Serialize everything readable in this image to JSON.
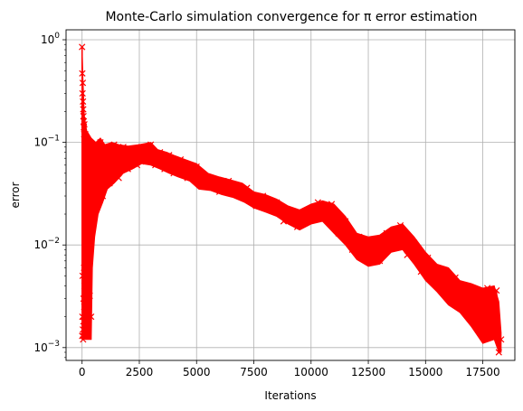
{
  "chart_data": {
    "type": "line",
    "title": "Monte-Carlo simulation convergence for π error estimation",
    "xlabel": "Iterations",
    "ylabel": "error",
    "xlim": [
      -700,
      18900
    ],
    "ylim": [
      0.00075,
      1.25
    ],
    "yscale": "log",
    "grid": true,
    "marker": "x",
    "series": [
      {
        "color": "#ff0000",
        "points": [
          [
            0,
            0.85
          ],
          [
            5,
            0.0013
          ],
          [
            10,
            0.47
          ],
          [
            15,
            0.002
          ],
          [
            20,
            0.3
          ],
          [
            25,
            0.005
          ],
          [
            30,
            0.38
          ],
          [
            35,
            0.0015
          ],
          [
            40,
            0.25
          ],
          [
            45,
            0.0012
          ],
          [
            50,
            0.21
          ],
          [
            55,
            0.0018
          ],
          [
            60,
            0.18
          ],
          [
            65,
            0.003
          ],
          [
            70,
            0.16
          ],
          [
            75,
            0.0013
          ],
          [
            80,
            0.14
          ],
          [
            85,
            0.006
          ],
          [
            90,
            0.12
          ],
          [
            95,
            0.0025
          ],
          [
            100,
            0.15
          ],
          [
            105,
            0.004
          ],
          [
            110,
            0.11
          ],
          [
            115,
            0.002
          ],
          [
            120,
            0.1
          ],
          [
            130,
            0.008
          ],
          [
            140,
            0.12
          ],
          [
            150,
            0.006
          ],
          [
            160,
            0.09
          ],
          [
            170,
            0.0045
          ],
          [
            180,
            0.11
          ],
          [
            190,
            0.01
          ],
          [
            200,
            0.08
          ],
          [
            215,
            0.003
          ],
          [
            230,
            0.09
          ],
          [
            245,
            0.012
          ],
          [
            260,
            0.075
          ],
          [
            275,
            0.0045
          ],
          [
            290,
            0.07
          ],
          [
            305,
            0.015
          ],
          [
            320,
            0.08
          ],
          [
            335,
            0.0032
          ],
          [
            350,
            0.065
          ],
          [
            365,
            0.02
          ],
          [
            380,
            0.07
          ],
          [
            395,
            0.002
          ],
          [
            420,
            0.06
          ],
          [
            450,
            0.02
          ],
          [
            500,
            0.08
          ],
          [
            550,
            0.03
          ],
          [
            600,
            0.09
          ],
          [
            700,
            0.025
          ],
          [
            800,
            0.1
          ],
          [
            900,
            0.03
          ],
          [
            1000,
            0.085
          ],
          [
            1200,
            0.04
          ],
          [
            1400,
            0.095
          ],
          [
            1600,
            0.045
          ],
          [
            1800,
            0.09
          ],
          [
            2000,
            0.055
          ],
          [
            2200,
            0.085
          ],
          [
            2400,
            0.06
          ],
          [
            2600,
            0.09
          ],
          [
            2800,
            0.065
          ],
          [
            3000,
            0.095
          ],
          [
            3200,
            0.06
          ],
          [
            3400,
            0.08
          ],
          [
            3600,
            0.055
          ],
          [
            3800,
            0.075
          ],
          [
            4000,
            0.05
          ],
          [
            4300,
            0.068
          ],
          [
            4600,
            0.045
          ],
          [
            5000,
            0.058
          ],
          [
            5300,
            0.038
          ],
          [
            5600,
            0.045
          ],
          [
            6000,
            0.033
          ],
          [
            6400,
            0.042
          ],
          [
            6800,
            0.031
          ],
          [
            7200,
            0.036
          ],
          [
            7600,
            0.024
          ],
          [
            7900,
            0.03
          ],
          [
            8200,
            0.022
          ],
          [
            8500,
            0.026
          ],
          [
            8800,
            0.017
          ],
          [
            9100,
            0.021
          ],
          [
            9400,
            0.015
          ],
          [
            9700,
            0.02
          ],
          [
            10000,
            0.018
          ],
          [
            10300,
            0.026
          ],
          [
            10600,
            0.019
          ],
          [
            10900,
            0.025
          ],
          [
            11200,
            0.013
          ],
          [
            11500,
            0.017
          ],
          [
            11800,
            0.009
          ],
          [
            12100,
            0.012
          ],
          [
            12400,
            0.008
          ],
          [
            12700,
            0.0105
          ],
          [
            13000,
            0.007
          ],
          [
            13300,
            0.013
          ],
          [
            13600,
            0.011
          ],
          [
            13900,
            0.0155
          ],
          [
            14200,
            0.008
          ],
          [
            14500,
            0.0105
          ],
          [
            14800,
            0.0055
          ],
          [
            15100,
            0.0075
          ],
          [
            15400,
            0.0042
          ],
          [
            15700,
            0.0058
          ],
          [
            16000,
            0.0035
          ],
          [
            16300,
            0.0048
          ],
          [
            16600,
            0.0026
          ],
          [
            16900,
            0.0036
          ],
          [
            17100,
            0.0018
          ],
          [
            17300,
            0.0032
          ],
          [
            17500,
            0.0014
          ],
          [
            17700,
            0.0038
          ],
          [
            17900,
            0.0016
          ],
          [
            18100,
            0.0036
          ],
          [
            18200,
            0.0009
          ],
          [
            18300,
            0.0012
          ]
        ],
        "upper": [
          [
            0,
            0.85
          ],
          [
            40,
            0.4
          ],
          [
            100,
            0.18
          ],
          [
            200,
            0.13
          ],
          [
            400,
            0.11
          ],
          [
            600,
            0.1
          ],
          [
            800,
            0.11
          ],
          [
            1000,
            0.095
          ],
          [
            1300,
            0.1
          ],
          [
            1600,
            0.095
          ],
          [
            2000,
            0.092
          ],
          [
            2500,
            0.095
          ],
          [
            3000,
            0.1
          ],
          [
            3300,
            0.085
          ],
          [
            3700,
            0.08
          ],
          [
            4000,
            0.075
          ],
          [
            4500,
            0.068
          ],
          [
            5000,
            0.062
          ],
          [
            5500,
            0.05
          ],
          [
            6000,
            0.046
          ],
          [
            6500,
            0.043
          ],
          [
            7000,
            0.04
          ],
          [
            7500,
            0.033
          ],
          [
            8000,
            0.031
          ],
          [
            8500,
            0.028
          ],
          [
            9000,
            0.024
          ],
          [
            9500,
            0.022
          ],
          [
            10000,
            0.025
          ],
          [
            10500,
            0.027
          ],
          [
            11000,
            0.025
          ],
          [
            11500,
            0.019
          ],
          [
            12000,
            0.013
          ],
          [
            12500,
            0.012
          ],
          [
            13000,
            0.0125
          ],
          [
            13500,
            0.015
          ],
          [
            14000,
            0.016
          ],
          [
            14500,
            0.012
          ],
          [
            15000,
            0.0085
          ],
          [
            15500,
            0.0065
          ],
          [
            16000,
            0.006
          ],
          [
            16500,
            0.0045
          ],
          [
            17000,
            0.0042
          ],
          [
            17500,
            0.0038
          ],
          [
            18000,
            0.004
          ],
          [
            18200,
            0.0028
          ],
          [
            18300,
            0.0014
          ]
        ],
        "lower": [
          [
            0,
            0.0012
          ],
          [
            400,
            0.0012
          ],
          [
            450,
            0.006
          ],
          [
            550,
            0.012
          ],
          [
            700,
            0.02
          ],
          [
            900,
            0.026
          ],
          [
            1100,
            0.035
          ],
          [
            1400,
            0.04
          ],
          [
            1800,
            0.05
          ],
          [
            2200,
            0.055
          ],
          [
            2600,
            0.062
          ],
          [
            3000,
            0.06
          ],
          [
            3400,
            0.055
          ],
          [
            3800,
            0.05
          ],
          [
            4200,
            0.046
          ],
          [
            4700,
            0.042
          ],
          [
            5100,
            0.035
          ],
          [
            5600,
            0.034
          ],
          [
            6100,
            0.031
          ],
          [
            6600,
            0.029
          ],
          [
            7100,
            0.026
          ],
          [
            7500,
            0.023
          ],
          [
            8000,
            0.021
          ],
          [
            8500,
            0.019
          ],
          [
            9000,
            0.016
          ],
          [
            9500,
            0.014
          ],
          [
            10000,
            0.016
          ],
          [
            10500,
            0.017
          ],
          [
            11000,
            0.013
          ],
          [
            11500,
            0.01
          ],
          [
            12000,
            0.0072
          ],
          [
            12500,
            0.0062
          ],
          [
            13000,
            0.0065
          ],
          [
            13500,
            0.0085
          ],
          [
            14000,
            0.009
          ],
          [
            14500,
            0.0065
          ],
          [
            15000,
            0.0045
          ],
          [
            15500,
            0.0035
          ],
          [
            16000,
            0.0026
          ],
          [
            16500,
            0.0022
          ],
          [
            17000,
            0.0016
          ],
          [
            17500,
            0.0011
          ],
          [
            18000,
            0.0012
          ],
          [
            18200,
            0.0009
          ],
          [
            18300,
            0.0009
          ]
        ]
      }
    ],
    "xticks": [
      {
        "value": 0,
        "label": "0"
      },
      {
        "value": 2500,
        "label": "2500"
      },
      {
        "value": 5000,
        "label": "5000"
      },
      {
        "value": 7500,
        "label": "7500"
      },
      {
        "value": 10000,
        "label": "10000"
      },
      {
        "value": 12500,
        "label": "12500"
      },
      {
        "value": 15000,
        "label": "15000"
      },
      {
        "value": 17500,
        "label": "17500"
      }
    ],
    "yticks": [
      {
        "value": 0.001,
        "base": "10",
        "exp": "−3"
      },
      {
        "value": 0.01,
        "base": "10",
        "exp": "−2"
      },
      {
        "value": 0.1,
        "base": "10",
        "exp": "−1"
      },
      {
        "value": 1,
        "base": "10",
        "exp": "0"
      }
    ]
  }
}
